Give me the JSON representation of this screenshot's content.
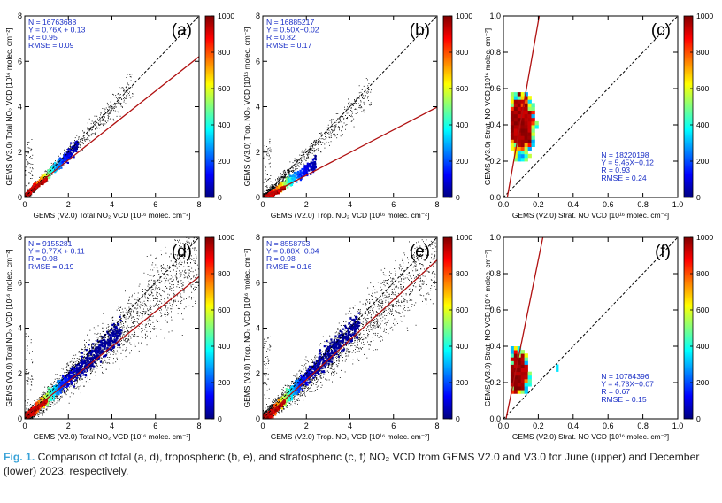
{
  "chart_data": [
    {
      "type": "scatter",
      "panel": "(a)",
      "xlabel": "GEMS (V2.0) Total NO₂ VCD [10¹⁶ molec. cm⁻²]",
      "ylabel": "GEMS (V3.0) Total NO₂ VCD [10¹⁶ molec. cm⁻²]",
      "xlim": [
        0,
        8
      ],
      "ylim": [
        0,
        8
      ],
      "xticks": [
        "0",
        "2",
        "4",
        "6",
        "8"
      ],
      "yticks": [
        "0",
        "2",
        "4",
        "6",
        "8"
      ],
      "stats": [
        "N = 16763688",
        "Y = 0.76X + 0.13",
        "R = 0.95",
        "RMSE = 0.09"
      ],
      "stats_position": "top-left",
      "fit": {
        "slope": 0.76,
        "intercept": 0.13
      },
      "spread": "narrow"
    },
    {
      "type": "scatter",
      "panel": "(b)",
      "xlabel": "GEMS (V2.0) Trop. NO₂ VCD [10¹⁶ molec. cm⁻²]",
      "ylabel": "GEMS (V3.0) Trop. NO₂ VCD [10¹⁶ molec. cm⁻²]",
      "xlim": [
        0,
        8
      ],
      "ylim": [
        0,
        8
      ],
      "xticks": [
        "0",
        "2",
        "4",
        "6",
        "8"
      ],
      "yticks": [
        "0",
        "2",
        "4",
        "6",
        "8"
      ],
      "stats": [
        "N = 16885217",
        "Y = 0.50X−0.02",
        "R = 0.82",
        "RMSE = 0.17"
      ],
      "stats_position": "top-left",
      "fit": {
        "slope": 0.5,
        "intercept": -0.02
      },
      "spread": "narrow"
    },
    {
      "type": "scatter",
      "panel": "(c)",
      "xlabel": "GEMS (V2.0) Strat. NO VCD [10¹⁶ molec. cm⁻²]",
      "ylabel": "GEMS (V3.0) Strat. NO VCD [10¹⁶ molec. cm⁻²]",
      "xlim": [
        0,
        1
      ],
      "ylim": [
        0,
        1
      ],
      "xticks": [
        "0.0",
        "0.2",
        "0.4",
        "0.6",
        "0.8",
        "1.0"
      ],
      "yticks": [
        "0.0",
        "0.2",
        "0.4",
        "0.6",
        "0.8",
        "1.0"
      ],
      "stats": [
        "N = 18220198",
        "Y = 5.45X−0.12",
        "R = 0.93",
        "RMSE = 0.24"
      ],
      "stats_position": "bottom-right",
      "fit": {
        "slope": 5.45,
        "intercept": -0.12
      },
      "spread": "strat"
    },
    {
      "type": "scatter",
      "panel": "(d)",
      "xlabel": "GEMS (V2.0) Total NO₂ VCD [10¹⁶ molec. cm⁻²]",
      "ylabel": "GEMS (V3.0) Total NO₂ VCD [10¹⁶ molec. cm⁻²]",
      "xlim": [
        0,
        8
      ],
      "ylim": [
        0,
        8
      ],
      "xticks": [
        "0",
        "2",
        "4",
        "6",
        "8"
      ],
      "yticks": [
        "0",
        "2",
        "4",
        "6",
        "8"
      ],
      "stats": [
        "N = 9155281",
        "Y = 0.77X + 0.11",
        "R = 0.98",
        "RMSE = 0.19"
      ],
      "stats_position": "top-left",
      "fit": {
        "slope": 0.77,
        "intercept": 0.11
      },
      "spread": "wide"
    },
    {
      "type": "scatter",
      "panel": "(e)",
      "xlabel": "GEMS (V2.0) Trop. NO₂ VCD [10¹⁶ molec. cm⁻²]",
      "ylabel": "GEMS (V3.0) Trop. NO₂ VCD [10¹⁶ molec. cm⁻²]",
      "xlim": [
        0,
        8
      ],
      "ylim": [
        0,
        8
      ],
      "xticks": [
        "0",
        "2",
        "4",
        "6",
        "8"
      ],
      "yticks": [
        "0",
        "2",
        "4",
        "6",
        "8"
      ],
      "stats": [
        "N = 8558753",
        "Y = 0.88X−0.04",
        "R = 0.98",
        "RMSE = 0.16"
      ],
      "stats_position": "top-left",
      "fit": {
        "slope": 0.88,
        "intercept": -0.04
      },
      "spread": "wide"
    },
    {
      "type": "scatter",
      "panel": "(f)",
      "xlabel": "GEMS (V2.0) Strat. NO VCD [10¹⁶ molec. cm⁻²]",
      "ylabel": "GEMS (V3.0) Strat. NO VCD [10¹⁶ molec. cm⁻²]",
      "xlim": [
        0,
        1
      ],
      "ylim": [
        0,
        1
      ],
      "xticks": [
        "0.0",
        "0.2",
        "0.4",
        "0.6",
        "0.8",
        "1.0"
      ],
      "yticks": [
        "0.0",
        "0.2",
        "0.4",
        "0.6",
        "0.8",
        "1.0"
      ],
      "stats": [
        "N = 10784396",
        "Y = 4.73X−0.07",
        "R = 0.67",
        "RMSE = 0.15"
      ],
      "stats_position": "bottom-right",
      "fit": {
        "slope": 4.73,
        "intercept": -0.07
      },
      "spread": "strat2"
    }
  ],
  "colorbar": {
    "ticks": [
      "0",
      "200",
      "400",
      "600",
      "800",
      "1000"
    ],
    "range": [
      0,
      1000
    ],
    "colors": [
      "#00007f",
      "#0000ff",
      "#0080ff",
      "#00ffff",
      "#80ff80",
      "#ffff00",
      "#ff8000",
      "#ff0000",
      "#7f0000"
    ]
  },
  "colors": {
    "fit_line": "#b01010",
    "one_to_one": "#000000",
    "stats_text": "#1a2fc6",
    "caption_label": "#3aa3d8"
  },
  "caption": {
    "label": "Fig. 1.",
    "text": "Comparison of total (a, d), tropospheric (b, e), and stratospheric (c, f) NO₂ VCD from GEMS V2.0 and V3.0 for June (upper) and December (lower) 2023, respectively."
  }
}
